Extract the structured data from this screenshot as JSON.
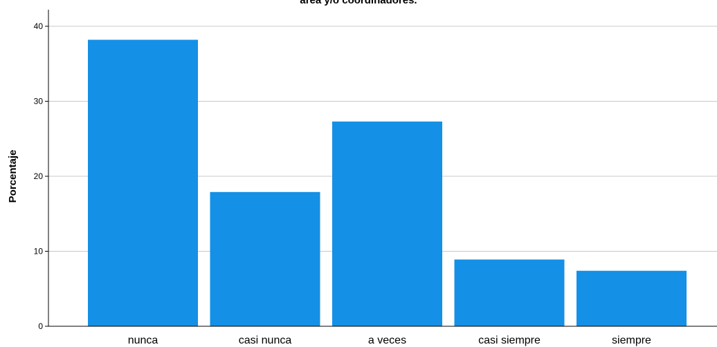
{
  "chart_data": {
    "type": "bar",
    "title": "área y/o coordinadores.",
    "xlabel": "",
    "ylabel": "Porcentaje",
    "categories": [
      "nunca",
      "casi nunca",
      "a veces",
      "casi siempre",
      "siempre"
    ],
    "values": [
      38.2,
      17.9,
      27.3,
      8.9,
      7.4
    ],
    "ylim": [
      0,
      42
    ],
    "yticks": [
      0,
      10,
      20,
      30,
      40
    ],
    "grid": true,
    "colors": {
      "bar": "#1490e6",
      "grid": "#c8c8c8",
      "axis": "#000000"
    }
  }
}
